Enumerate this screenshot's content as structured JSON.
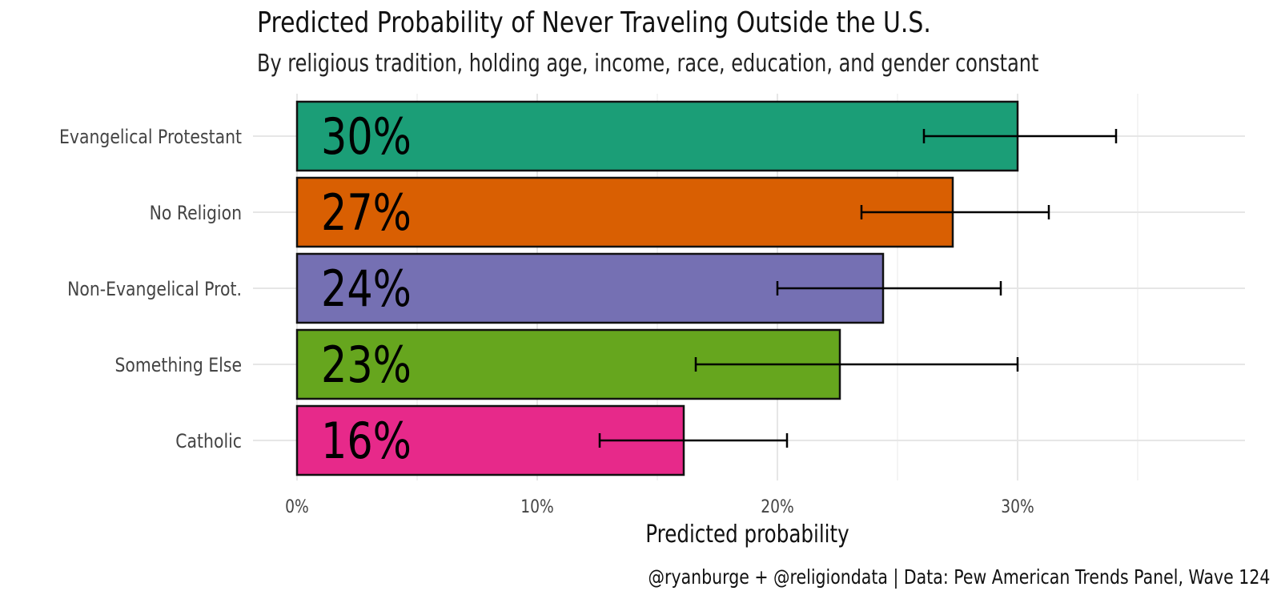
{
  "title": "Predicted Probability of Never Traveling Outside the U.S.",
  "subtitle": "By religious tradition, holding age, income, race, education, and gender constant",
  "caption": "@ryanburge + @religiondata | Data: Pew American Trends Panel, Wave 124",
  "chart_data": {
    "type": "bar",
    "orientation": "horizontal",
    "title": "Predicted Probability of Never Traveling Outside the U.S.",
    "subtitle": "By religious tradition, holding age, income, race, education, and gender constant",
    "xlabel": "Predicted probability",
    "ylabel": "",
    "xlim": [
      0,
      0.39
    ],
    "xticks": [
      0,
      0.1,
      0.2,
      0.3
    ],
    "xtick_labels": [
      "0%",
      "10%",
      "20%",
      "30%"
    ],
    "grid": true,
    "categories": [
      "Evangelical Protestant",
      "No Religion",
      "Non-Evangelical Prot.",
      "Something Else",
      "Catholic"
    ],
    "values": [
      0.3,
      0.273,
      0.244,
      0.226,
      0.161
    ],
    "labels": [
      "30%",
      "27%",
      "24%",
      "23%",
      "16%"
    ],
    "ci_low": [
      0.261,
      0.235,
      0.2,
      0.166,
      0.126
    ],
    "ci_high": [
      0.341,
      0.313,
      0.293,
      0.3,
      0.204
    ],
    "colors": [
      "#1b9e77",
      "#d95f02",
      "#7570b3",
      "#66a61e",
      "#e7298a"
    ]
  }
}
